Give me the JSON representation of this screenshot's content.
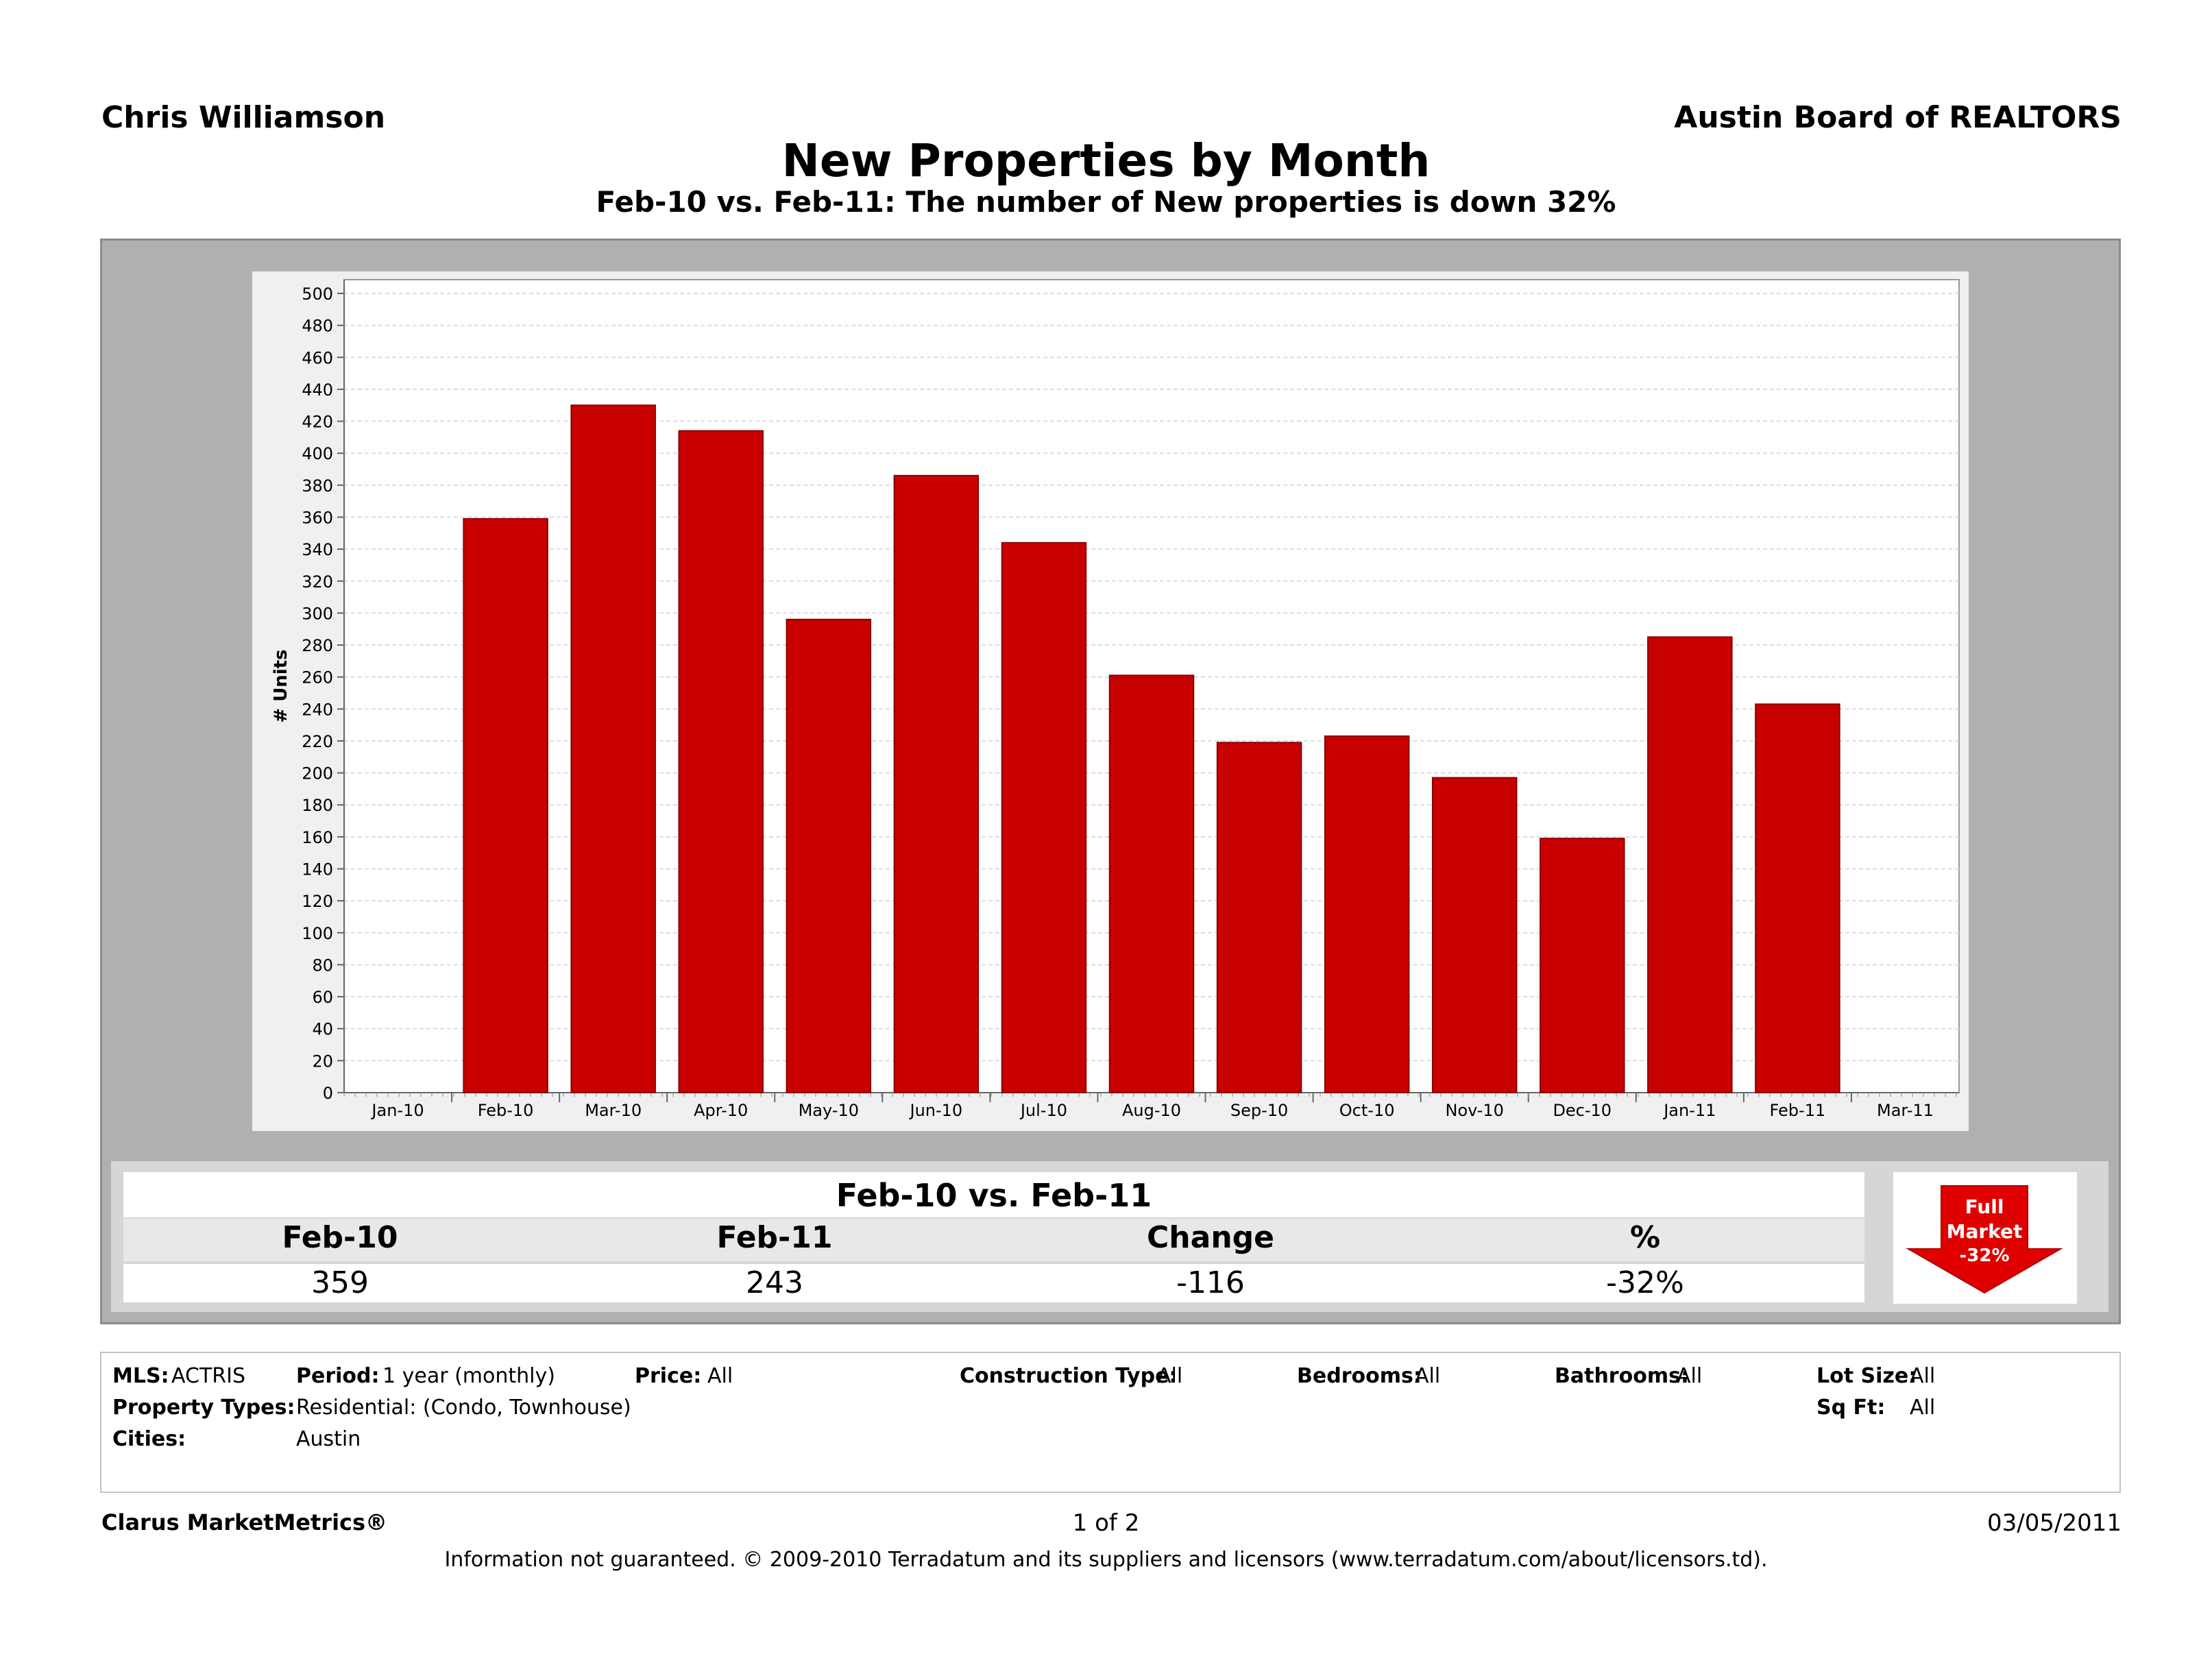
{
  "header": {
    "agent": "Chris Williamson",
    "board": "Austin Board of REALTORS"
  },
  "chart_data": {
    "type": "bar",
    "title": "New Properties by Month",
    "subtitle": "Feb-10 vs. Feb-11: The number of New properties is down 32%",
    "ylabel": "# Units",
    "xlabel": "",
    "ylim": [
      0,
      500
    ],
    "ytick_step": 20,
    "grid": true,
    "axis_ticks": [
      "Jan-10",
      "Feb-10",
      "Mar-10",
      "Apr-10",
      "May-10",
      "Jun-10",
      "Jul-10",
      "Aug-10",
      "Sep-10",
      "Oct-10",
      "Nov-10",
      "Dec-10",
      "Jan-11",
      "Feb-11",
      "Mar-11"
    ],
    "categories": [
      "Feb-10",
      "Mar-10",
      "Apr-10",
      "May-10",
      "Jun-10",
      "Jul-10",
      "Aug-10",
      "Sep-10",
      "Oct-10",
      "Nov-10",
      "Dec-10",
      "Jan-11",
      "Feb-11"
    ],
    "values": [
      359,
      430,
      414,
      296,
      386,
      344,
      261,
      219,
      223,
      197,
      159,
      285,
      243
    ],
    "bar_color": "#c90000"
  },
  "summary": {
    "title": "Feb-10 vs. Feb-11",
    "headers": [
      "Feb-10",
      "Feb-11",
      "Change",
      "%"
    ],
    "values": [
      "359",
      "243",
      "-116",
      "-32%"
    ]
  },
  "badge": {
    "line1": "Full",
    "line2": "Market",
    "line3": "-32%",
    "icon": "down-arrow-icon",
    "color": "#e00000"
  },
  "filters": {
    "mls_label": "MLS:",
    "mls_value": "ACTRIS",
    "period_label": "Period:",
    "period_value": "1 year (monthly)",
    "price_label": "Price:",
    "price_value": "All",
    "construction_label": "Construction Type:",
    "construction_value": "All",
    "bedrooms_label": "Bedrooms:",
    "bedrooms_value": "All",
    "bathrooms_label": "Bathrooms:",
    "bathrooms_value": "All",
    "lotsize_label": "Lot Size:",
    "lotsize_value": "All",
    "proptypes_label": "Property Types:",
    "proptypes_value": "Residential: (Condo, Townhouse)",
    "sqft_label": "Sq Ft:",
    "sqft_value": "All",
    "cities_label": "Cities:",
    "cities_value": "Austin"
  },
  "footer": {
    "brand": "Clarus MarketMetrics®",
    "page": "1 of 2",
    "date": "03/05/2011",
    "disclaimer": "Information not guaranteed.  © 2009-2010 Terradatum and its suppliers and licensors (www.terradatum.com/about/licensors.td)."
  }
}
